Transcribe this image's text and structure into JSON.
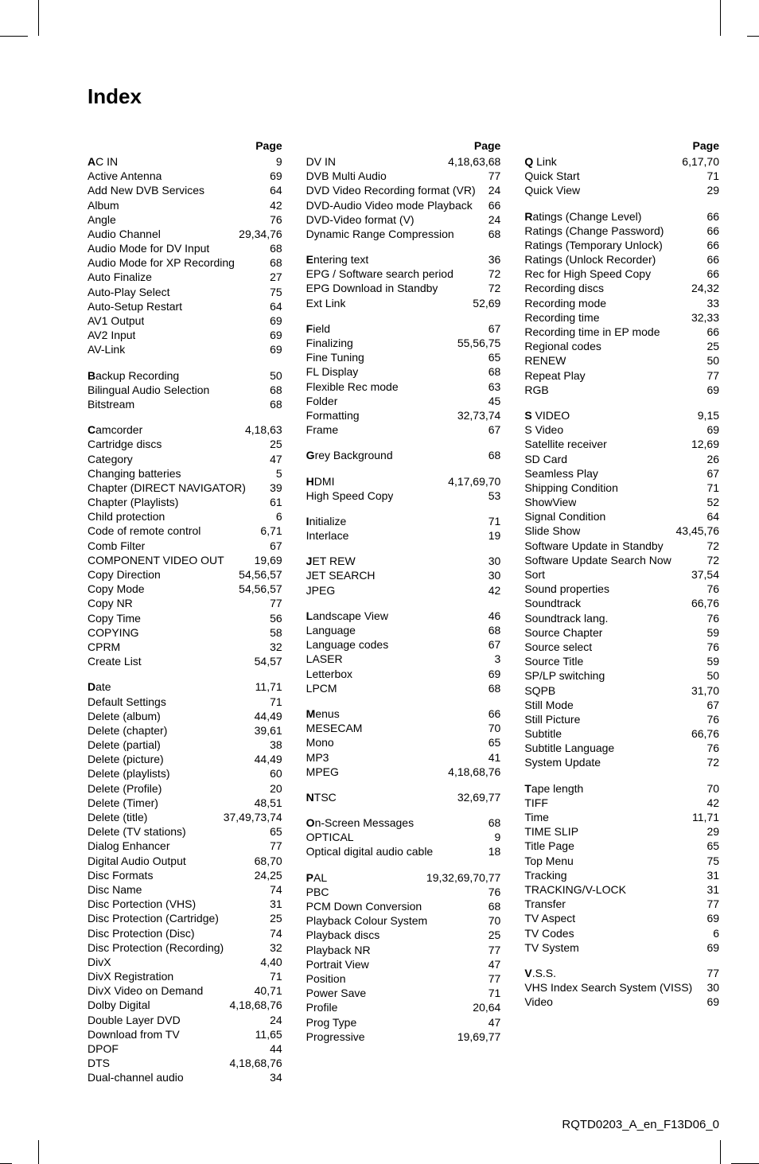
{
  "title": "Index",
  "page_label": "Page",
  "footer": "RQTD0203_A_en_F13D06_0",
  "typography": {
    "body_fontsize_pt": 10,
    "title_fontsize_pt": 19,
    "line_height": 1.3,
    "font_family": "Arial"
  },
  "colors": {
    "text": "#000000",
    "background": "#ffffff"
  },
  "columns": [
    {
      "groups": [
        [
          {
            "t": "AC IN",
            "b": "A",
            "p": "9"
          },
          {
            "t": "Active Antenna",
            "p": "69"
          },
          {
            "t": "Add New DVB Services",
            "p": "64"
          },
          {
            "t": "Album",
            "p": "42"
          },
          {
            "t": "Angle",
            "p": "76"
          },
          {
            "t": "Audio Channel",
            "p": "29,34,76"
          },
          {
            "t": "Audio Mode for DV Input",
            "p": "68"
          },
          {
            "t": "Audio Mode for XP Recording",
            "p": "68"
          },
          {
            "t": "Auto Finalize",
            "p": "27"
          },
          {
            "t": "Auto-Play Select",
            "p": "75"
          },
          {
            "t": "Auto-Setup Restart",
            "p": "64"
          },
          {
            "t": "AV1 Output",
            "p": "69"
          },
          {
            "t": "AV2 Input",
            "p": "69"
          },
          {
            "t": "AV-Link",
            "p": "69"
          }
        ],
        [
          {
            "t": "Backup Recording",
            "b": "B",
            "p": "50"
          },
          {
            "t": "Bilingual Audio Selection",
            "p": "68"
          },
          {
            "t": "Bitstream",
            "p": "68"
          }
        ],
        [
          {
            "t": "Camcorder",
            "b": "C",
            "p": "4,18,63"
          },
          {
            "t": "Cartridge discs",
            "p": "25"
          },
          {
            "t": "Category",
            "p": "47"
          },
          {
            "t": "Changing batteries",
            "p": "5"
          },
          {
            "t": "Chapter (DIRECT NAVIGATOR)",
            "p": "39"
          },
          {
            "t": "Chapter (Playlists)",
            "p": "61"
          },
          {
            "t": "Child protection",
            "p": "6"
          },
          {
            "t": "Code of remote control",
            "p": "6,71"
          },
          {
            "t": "Comb Filter",
            "p": "67"
          },
          {
            "t": "COMPONENT VIDEO OUT",
            "p": "19,69"
          },
          {
            "t": "Copy Direction",
            "p": "54,56,57"
          },
          {
            "t": "Copy Mode",
            "p": "54,56,57"
          },
          {
            "t": "Copy NR",
            "p": "77"
          },
          {
            "t": "Copy Time",
            "p": "56"
          },
          {
            "t": "COPYING",
            "p": "58"
          },
          {
            "t": "CPRM",
            "p": "32"
          },
          {
            "t": "Create List",
            "p": "54,57"
          }
        ],
        [
          {
            "t": "Date",
            "b": "D",
            "p": "11,71"
          },
          {
            "t": "Default Settings",
            "p": "71"
          },
          {
            "t": "Delete (album)",
            "p": "44,49"
          },
          {
            "t": "Delete (chapter)",
            "p": "39,61"
          },
          {
            "t": "Delete (partial)",
            "p": "38"
          },
          {
            "t": "Delete (picture)",
            "p": "44,49"
          },
          {
            "t": "Delete (playlists)",
            "p": "60"
          },
          {
            "t": "Delete (Profile)",
            "p": "20"
          },
          {
            "t": "Delete (Timer)",
            "p": "48,51"
          },
          {
            "t": "Delete (title)",
            "p": "37,49,73,74"
          },
          {
            "t": "Delete (TV stations)",
            "p": "65"
          },
          {
            "t": "Dialog Enhancer",
            "p": "77"
          },
          {
            "t": "Digital Audio Output",
            "p": "68,70"
          },
          {
            "t": "Disc Formats",
            "p": "24,25"
          },
          {
            "t": "Disc Name",
            "p": "74"
          },
          {
            "t": "Disc Portection (VHS)",
            "p": "31"
          },
          {
            "t": "Disc Protection (Cartridge)",
            "p": "25"
          },
          {
            "t": "Disc Protection (Disc)",
            "p": "74"
          },
          {
            "t": "Disc Protection (Recording)",
            "p": "32"
          },
          {
            "t": "DivX",
            "p": "4,40"
          },
          {
            "t": "DivX Registration",
            "p": "71"
          },
          {
            "t": "DivX Video on Demand",
            "p": "40,71"
          },
          {
            "t": "Dolby Digital",
            "p": "4,18,68,76"
          },
          {
            "t": "Double Layer DVD",
            "p": "24"
          },
          {
            "t": "Download from TV",
            "p": "11,65"
          },
          {
            "t": "DPOF",
            "p": "44"
          },
          {
            "t": "DTS",
            "p": "4,18,68,76"
          },
          {
            "t": "Dual-channel audio",
            "p": "34"
          }
        ]
      ]
    },
    {
      "groups": [
        [
          {
            "t": "DV IN",
            "p": "4,18,63,68"
          },
          {
            "t": "DVB Multi Audio",
            "p": "77"
          },
          {
            "t": "DVD Video Recording format (VR)",
            "p": "24"
          },
          {
            "t": "DVD-Audio Video mode Playback",
            "p": "66"
          },
          {
            "t": "DVD-Video format (V)",
            "p": "24"
          },
          {
            "t": "Dynamic Range Compression",
            "p": "68"
          }
        ],
        [
          {
            "t": "Entering text",
            "b": "E",
            "p": "36"
          },
          {
            "t": "EPG / Software search period",
            "p": "72"
          },
          {
            "t": "EPG Download in Standby",
            "p": "72"
          },
          {
            "t": "Ext Link",
            "p": "52,69"
          }
        ],
        [
          {
            "t": "Field",
            "b": "F",
            "p": "67"
          },
          {
            "t": "Finalizing",
            "p": "55,56,75"
          },
          {
            "t": "Fine Tuning",
            "p": "65"
          },
          {
            "t": "FL Display",
            "p": "68"
          },
          {
            "t": "Flexible Rec mode",
            "p": "63"
          },
          {
            "t": "Folder",
            "p": "45"
          },
          {
            "t": "Formatting",
            "p": "32,73,74"
          },
          {
            "t": "Frame",
            "p": "67"
          }
        ],
        [
          {
            "t": "Grey Background",
            "b": "G",
            "p": "68"
          }
        ],
        [
          {
            "t": "HDMI",
            "b": "H",
            "p": "4,17,69,70"
          },
          {
            "t": "High Speed Copy",
            "p": "53"
          }
        ],
        [
          {
            "t": "Initialize",
            "b": "I",
            "p": "71"
          },
          {
            "t": "Interlace",
            "p": "19"
          }
        ],
        [
          {
            "t": "JET REW",
            "b": "J",
            "p": "30"
          },
          {
            "t": "JET SEARCH",
            "p": "30"
          },
          {
            "t": "JPEG",
            "p": "42"
          }
        ],
        [
          {
            "t": "Landscape View",
            "b": "L",
            "p": "46"
          },
          {
            "t": "Language",
            "p": "68"
          },
          {
            "t": "Language codes",
            "p": "67"
          },
          {
            "t": "LASER",
            "p": "3"
          },
          {
            "t": "Letterbox",
            "p": "69"
          },
          {
            "t": "LPCM",
            "p": "68"
          }
        ],
        [
          {
            "t": "Menus",
            "b": "M",
            "p": "66"
          },
          {
            "t": "MESECAM",
            "p": "70"
          },
          {
            "t": "Mono",
            "p": "65"
          },
          {
            "t": "MP3",
            "p": "41"
          },
          {
            "t": "MPEG",
            "p": "4,18,68,76"
          }
        ],
        [
          {
            "t": "NTSC",
            "b": "N",
            "p": "32,69,77"
          }
        ],
        [
          {
            "t": "On-Screen Messages",
            "b": "O",
            "p": "68"
          },
          {
            "t": "OPTICAL",
            "p": "9"
          },
          {
            "t": "Optical digital audio cable",
            "p": "18"
          }
        ],
        [
          {
            "t": "PAL",
            "b": "P",
            "p": "19,32,69,70,77"
          },
          {
            "t": "PBC",
            "p": "76"
          },
          {
            "t": "PCM Down Conversion",
            "p": "68"
          },
          {
            "t": "Playback Colour System",
            "p": "70"
          },
          {
            "t": "Playback discs",
            "p": "25"
          },
          {
            "t": "Playback NR",
            "p": "77"
          },
          {
            "t": "Portrait View",
            "p": "47"
          },
          {
            "t": "Position",
            "p": "77"
          },
          {
            "t": "Power Save",
            "p": "71"
          },
          {
            "t": "Profile",
            "p": "20,64"
          },
          {
            "t": "Prog Type",
            "p": "47"
          },
          {
            "t": "Progressive",
            "p": "19,69,77"
          }
        ]
      ]
    },
    {
      "groups": [
        [
          {
            "t": "Q Link",
            "b": "Q",
            "p": "6,17,70"
          },
          {
            "t": "Quick Start",
            "p": "71"
          },
          {
            "t": "Quick View",
            "p": "29"
          }
        ],
        [
          {
            "t": "Ratings (Change Level)",
            "b": "R",
            "p": "66"
          },
          {
            "t": "Ratings (Change Password)",
            "p": "66"
          },
          {
            "t": "Ratings (Temporary Unlock)",
            "p": "66"
          },
          {
            "t": "Ratings (Unlock Recorder)",
            "p": "66"
          },
          {
            "t": "Rec for High Speed Copy",
            "p": "66"
          },
          {
            "t": "Recording discs",
            "p": "24,32"
          },
          {
            "t": "Recording mode",
            "p": "33"
          },
          {
            "t": "Recording time",
            "p": "32,33"
          },
          {
            "t": "Recording time in EP mode",
            "p": "66"
          },
          {
            "t": "Regional codes",
            "p": "25"
          },
          {
            "t": "RENEW",
            "p": "50"
          },
          {
            "t": "Repeat Play",
            "p": "77"
          },
          {
            "t": "RGB",
            "p": "69"
          }
        ],
        [
          {
            "t": "S VIDEO",
            "b": "S",
            "p": "9,15"
          },
          {
            "t": "S Video",
            "p": "69"
          },
          {
            "t": "Satellite receiver",
            "p": "12,69"
          },
          {
            "t": "SD Card",
            "p": "26"
          },
          {
            "t": "Seamless Play",
            "p": "67"
          },
          {
            "t": "Shipping Condition",
            "p": "71"
          },
          {
            "t": "ShowView",
            "p": "52"
          },
          {
            "t": "Signal Condition",
            "p": "64"
          },
          {
            "t": "Slide Show",
            "p": "43,45,76"
          },
          {
            "t": "Software Update in Standby",
            "p": "72"
          },
          {
            "t": "Software Update Search Now",
            "p": "72"
          },
          {
            "t": "Sort",
            "p": "37,54"
          },
          {
            "t": "Sound properties",
            "p": "76"
          },
          {
            "t": "Soundtrack",
            "p": "66,76"
          },
          {
            "t": "Soundtrack lang.",
            "p": "76"
          },
          {
            "t": "Source Chapter",
            "p": "59"
          },
          {
            "t": "Source select",
            "p": "76"
          },
          {
            "t": "Source Title",
            "p": "59"
          },
          {
            "t": "SP/LP switching",
            "p": "50"
          },
          {
            "t": "SQPB",
            "p": "31,70"
          },
          {
            "t": "Still Mode",
            "p": "67"
          },
          {
            "t": "Still Picture",
            "p": "76"
          },
          {
            "t": "Subtitle",
            "p": "66,76"
          },
          {
            "t": "Subtitle Language",
            "p": "76"
          },
          {
            "t": "System Update",
            "p": "72"
          }
        ],
        [
          {
            "t": "Tape length",
            "b": "T",
            "p": "70"
          },
          {
            "t": "TIFF",
            "p": "42"
          },
          {
            "t": "Time",
            "p": "11,71"
          },
          {
            "t": "TIME SLIP",
            "p": "29"
          },
          {
            "t": "Title Page",
            "p": "65"
          },
          {
            "t": "Top Menu",
            "p": "75"
          },
          {
            "t": "Tracking",
            "p": "31"
          },
          {
            "t": "TRACKING/V-LOCK",
            "p": "31"
          },
          {
            "t": "Transfer",
            "p": "77"
          },
          {
            "t": "TV Aspect",
            "p": "69"
          },
          {
            "t": "TV Codes",
            "p": "6"
          },
          {
            "t": "TV System",
            "p": "69"
          }
        ],
        [
          {
            "t": "V.S.S.",
            "b": "V",
            "p": "77"
          },
          {
            "t": "VHS Index Search System (VISS)",
            "p": "30"
          },
          {
            "t": "Video",
            "p": "69"
          }
        ]
      ]
    }
  ]
}
